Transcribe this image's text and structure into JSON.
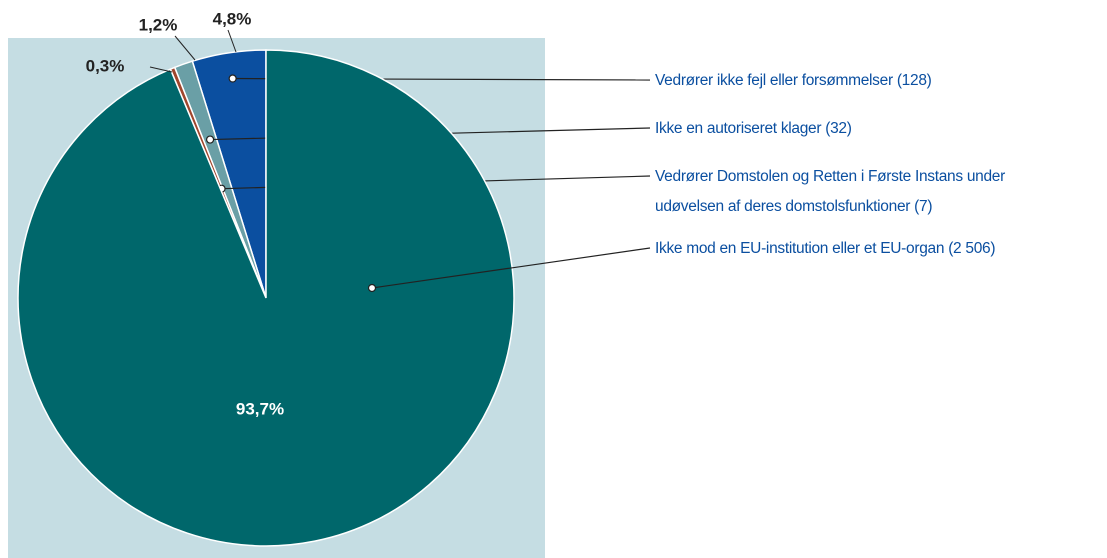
{
  "chart_data": {
    "type": "pie",
    "categories": [
      "Vedrører ikke fejl eller forsømmelser (128)",
      "Ikke en autoriseret klager (32)",
      "Vedrører Domstolen og Retten i Første Instans under\nudøvelsen af deres domstolsfunktioner (7)",
      "Ikke mod en EU-institution eller et EU-organ (2 506)"
    ],
    "values": [
      4.8,
      1.2,
      0.3,
      93.7
    ],
    "value_labels": [
      "4,8%",
      "1,2%",
      "0,3%",
      "93,7%"
    ],
    "colors": [
      "#0b4fa0",
      "#6a9fa6",
      "#a0462d",
      "#00676b"
    ]
  }
}
